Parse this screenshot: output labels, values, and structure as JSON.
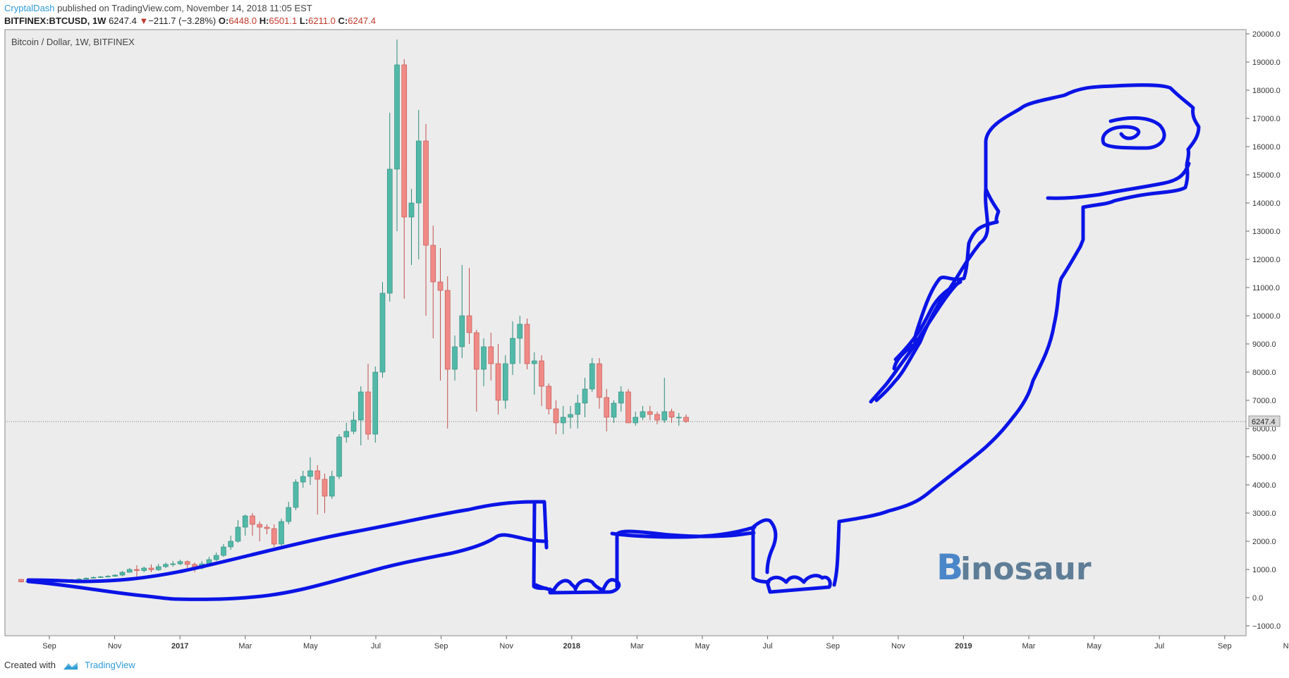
{
  "header": {
    "author": "CryptalDash",
    "published_text": "published on TradingView.com, November 14, 2018 11:05 EST",
    "symbol": "BITFINEX:BTCUSD, 1W",
    "last": "6247.4",
    "change_arrow": "▼",
    "change": "−211.7 (−3.28%)",
    "o_label": "O:",
    "o_value": "6448.0",
    "h_label": "H:",
    "h_value": "6501.1",
    "l_label": "L:",
    "l_value": "6211.0",
    "c_label": "C:",
    "c_value": "6247.4"
  },
  "footer": {
    "created_with": "Created with",
    "brand": "TradingView"
  },
  "colors": {
    "up": "#52b9a8",
    "down": "#ef8a86",
    "up_border": "#2a8a7a",
    "down_border": "#c0504d",
    "drawing": "#0a14e6",
    "plot_bg": "#ececec",
    "bitcoin_orange": "#4a86c8",
    "watermark": "#5f7d96"
  },
  "chart_data": {
    "type": "candlestick",
    "title": "Bitcoin / Dollar, 1W, BITFINEX",
    "current_price_label": "6247.4",
    "watermark_text": "inosaur",
    "watermark_glyph": "B",
    "ylim": [
      -1000,
      20000
    ],
    "y_ticks": [
      "20000.0",
      "19000.0",
      "18000.0",
      "17000.0",
      "16000.0",
      "15000.0",
      "14000.0",
      "13000.0",
      "12000.0",
      "11000.0",
      "10000.0",
      "9000.0",
      "8000.0",
      "7000.0",
      "6000.0",
      "5000.0",
      "4000.0",
      "3000.0",
      "2000.0",
      "1000.0",
      "0.0",
      "−1000.0"
    ],
    "x_ticks": [
      "Sep",
      "Nov",
      "2017",
      "Mar",
      "May",
      "Jul",
      "Sep",
      "Nov",
      "2018",
      "Mar",
      "May",
      "Jul",
      "Sep",
      "Nov",
      "2019",
      "Mar",
      "May",
      "Jul",
      "Sep",
      "Nov"
    ],
    "x_tick_bold": [
      false,
      false,
      true,
      false,
      false,
      false,
      false,
      false,
      true,
      false,
      false,
      false,
      false,
      false,
      true,
      false,
      false,
      false,
      false,
      false
    ],
    "closes": [
      560,
      580,
      600,
      590,
      610,
      620,
      610,
      640,
      660,
      690,
      720,
      740,
      760,
      800,
      900,
      1000,
      960,
      1050,
      990,
      1100,
      1180,
      1200,
      1280,
      1180,
      1050,
      1200,
      1350,
      1500,
      1800,
      2000,
      2500,
      2900,
      2600,
      2500,
      2450,
      1900,
      2700,
      3200,
      4100,
      4300,
      4500,
      4200,
      3600,
      4300,
      5700,
      5900,
      6300,
      7300,
      5800,
      8000,
      10800,
      15200,
      18900,
      13500,
      14000,
      16200,
      12500,
      11200,
      10900,
      8100,
      8900,
      10000,
      9400,
      8100,
      8900,
      8300,
      7000,
      8300,
      9200,
      9700,
      8300,
      8400,
      7500,
      6700,
      6200,
      6400,
      6500,
      6900,
      7400,
      8300,
      7100,
      6400,
      6900,
      7300,
      6200,
      6400,
      6600,
      6500,
      6300,
      6600,
      6400,
      6400,
      6250
    ],
    "opens": [
      650,
      560,
      580,
      600,
      590,
      610,
      620,
      610,
      640,
      660,
      690,
      720,
      740,
      760,
      800,
      900,
      1000,
      960,
      1050,
      990,
      1100,
      1180,
      1200,
      1280,
      1180,
      1050,
      1200,
      1350,
      1500,
      1800,
      2000,
      2500,
      2900,
      2600,
      2500,
      2450,
      1900,
      2700,
      3200,
      4100,
      4300,
      4500,
      4200,
      3600,
      4300,
      5700,
      5900,
      6300,
      7300,
      5800,
      8000,
      10800,
      15200,
      18900,
      13500,
      14000,
      16200,
      12500,
      11200,
      10900,
      8100,
      8900,
      10000,
      9400,
      8100,
      8900,
      8300,
      7000,
      8300,
      9200,
      9700,
      8300,
      8400,
      7500,
      6700,
      6200,
      6400,
      6500,
      6900,
      7400,
      8300,
      7100,
      6400,
      6900,
      7300,
      6200,
      6400,
      6600,
      6500,
      6300,
      6600,
      6400,
      6400
    ],
    "highs": [
      660,
      600,
      620,
      620,
      630,
      640,
      640,
      660,
      690,
      720,
      750,
      770,
      800,
      830,
      950,
      1050,
      1150,
      1100,
      1180,
      1200,
      1250,
      1300,
      1350,
      1320,
      1250,
      1300,
      1450,
      1600,
      1900,
      2200,
      2750,
      2950,
      3000,
      2700,
      2600,
      2600,
      2800,
      3400,
      4200,
      4500,
      4980,
      4700,
      4400,
      4500,
      5800,
      6200,
      6600,
      7500,
      8300,
      8200,
      11200,
      17200,
      19800,
      19100,
      14500,
      17300,
      16800,
      13200,
      12400,
      11400,
      9300,
      11800,
      11700,
      9500,
      9200,
      9400,
      9000,
      8600,
      9800,
      10000,
      9900,
      8700,
      8600,
      7600,
      7000,
      6800,
      6800,
      7200,
      7800,
      8500,
      8500,
      7400,
      7000,
      7500,
      7400,
      6600,
      6800,
      6800,
      6600,
      7800,
      6700,
      6550,
      6500
    ],
    "lows": [
      540,
      540,
      560,
      570,
      570,
      590,
      590,
      600,
      620,
      650,
      680,
      700,
      720,
      740,
      760,
      890,
      750,
      900,
      900,
      950,
      1050,
      1100,
      1150,
      1050,
      900,
      1000,
      1150,
      1300,
      1450,
      1700,
      1950,
      2200,
      2200,
      2000,
      2250,
      1800,
      1850,
      2600,
      3100,
      3900,
      4000,
      2950,
      3000,
      3500,
      4200,
      5500,
      5800,
      5400,
      5600,
      5500,
      7800,
      10500,
      13000,
      10600,
      11800,
      12000,
      10000,
      9200,
      7700,
      6000,
      7700,
      8500,
      9000,
      6600,
      7500,
      7700,
      6500,
      6700,
      7900,
      8300,
      8100,
      7200,
      6800,
      6500,
      5800,
      5800,
      6000,
      6000,
      6400,
      7300,
      6700,
      5900,
      6200,
      6600,
      6200,
      6100,
      6300,
      6300,
      6150,
      6200,
      6200,
      6100,
      6200
    ],
    "drawing_label": "Binosaur dinosaur outline drawn over price"
  }
}
